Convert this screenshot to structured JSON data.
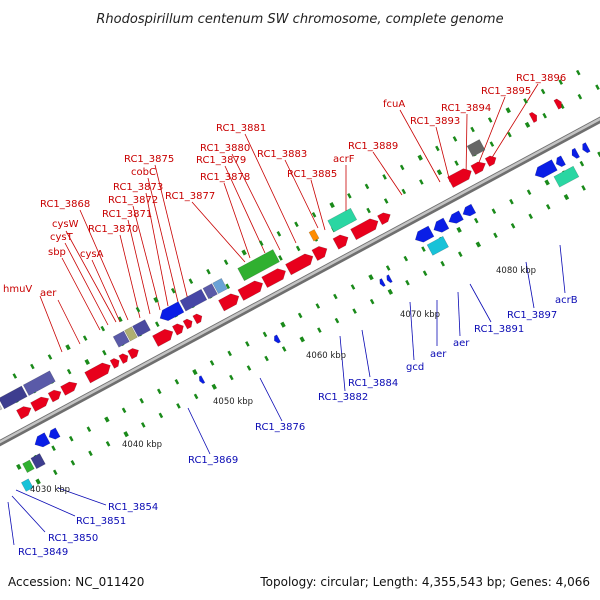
{
  "title": "Rhodospirillum centenum SW chromosome, complete genome",
  "footer": {
    "accession": "Accession: NC_011420",
    "summary": "Topology: circular; Length: 4,355,543 bp; Genes: 4,066"
  },
  "colors": {
    "backbone": "#9a9a9a",
    "forward_gene": "#e8001c",
    "reverse_gene": "#0a1ee6",
    "label_red": "#c80000",
    "label_blue": "#0a0ab4",
    "tick": "#1a8a1a"
  },
  "scale_labels": [
    "4030 kbp",
    "4040 kbp",
    "4050 kbp",
    "4060 kbp",
    "4070 kbp",
    "4080 kbp"
  ],
  "top_labels": [
    "hmuV",
    "aer",
    "sbp",
    "cysT",
    "cysW",
    "cysA",
    "RC1_3868",
    "RC1_3870",
    "RC1_3871",
    "RC1_3872",
    "RC1_3873",
    "cobC",
    "RC1_3875",
    "RC1_3877",
    "RC1_3878",
    "RC1_3879",
    "RC1_3880",
    "RC1_3881",
    "RC1_3883",
    "RC1_3885",
    "acrF",
    "RC1_3889",
    "fcuA",
    "RC1_3893",
    "RC1_3894",
    "RC1_3895",
    "RC1_3896"
  ],
  "bottom_labels": [
    "RC1_3849",
    "RC1_3850",
    "RC1_3851",
    "RC1_3854",
    "RC1_3869",
    "RC1_3876",
    "RC1_3882",
    "RC1_3884",
    "gcd",
    "aer",
    "aer",
    "RC1_3891",
    "RC1_3897",
    "acrB"
  ]
}
